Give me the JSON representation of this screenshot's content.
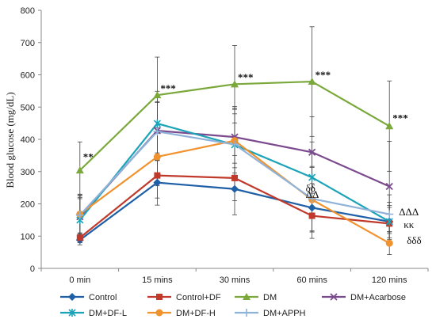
{
  "chart_data": {
    "type": "line",
    "categories": [
      "0 min",
      "15 mins",
      "30 mins",
      "60 mins",
      "120 mins"
    ],
    "ylabel": "Blood glucose (mg/dL)",
    "ylim": [
      0,
      800
    ],
    "yticks": [
      0,
      100,
      200,
      300,
      400,
      500,
      600,
      700,
      800
    ],
    "grid": false,
    "legend_position": "bottom",
    "series": [
      {
        "name": "Control",
        "color": "#1f5fa6",
        "marker": "diamond",
        "values": [
          88,
          266,
          246,
          188,
          145
        ],
        "errors": [
          15,
          70,
          80,
          75,
          50
        ]
      },
      {
        "name": "Control+DF",
        "color": "#c0392b",
        "marker": "square",
        "values": [
          95,
          288,
          280,
          163,
          139
        ],
        "errors": [
          15,
          70,
          70,
          70,
          50
        ]
      },
      {
        "name": "DM",
        "color": "#7aa83a",
        "marker": "triangle",
        "values": [
          304,
          537,
          571,
          579,
          441
        ],
        "errors": [
          88,
          118,
          120,
          170,
          140
        ]
      },
      {
        "name": "DM+Acarbose",
        "color": "#7b4a8e",
        "marker": "x",
        "values": [
          160,
          427,
          407,
          360,
          254
        ],
        "errors": [
          70,
          90,
          95,
          110,
          140
        ]
      },
      {
        "name": "DM+DF-L",
        "color": "#1ba3b8",
        "marker": "asterisk",
        "values": [
          150,
          449,
          383,
          282,
          145
        ],
        "errors": [
          70,
          100,
          110,
          110,
          60
        ]
      },
      {
        "name": "DM+DF-H",
        "color": "#f0922e",
        "marker": "circle",
        "values": [
          168,
          346,
          396,
          213,
          78
        ],
        "errors": [
          60,
          90,
          100,
          100,
          35
        ]
      },
      {
        "name": "DM+APPH",
        "color": "#8fb2d9",
        "marker": "plus",
        "values": [
          165,
          424,
          384,
          216,
          168
        ],
        "errors": [
          60,
          90,
          95,
          100,
          60
        ]
      }
    ],
    "annotations": [
      {
        "text": "**",
        "x": "0 min",
        "y": 335
      },
      {
        "text": "***",
        "x": "15 mins",
        "y": 547
      },
      {
        "text": "***",
        "x": "30 mins",
        "y": 581
      },
      {
        "text": "***",
        "x": "60 mins",
        "y": 589
      },
      {
        "text": "***",
        "x": "120 mins",
        "y": 455
      },
      {
        "text": "δδ",
        "x": "60 mins",
        "y": 238
      },
      {
        "text": "ΔΔ",
        "x": "60 mins",
        "y": 218
      },
      {
        "text": "ΔΔΔ",
        "x": "120 mins",
        "y": 165
      },
      {
        "text": "κκ",
        "x": "120 mins",
        "y": 125
      },
      {
        "text": "δδδ",
        "x": "120 mins",
        "y": 76
      }
    ]
  }
}
